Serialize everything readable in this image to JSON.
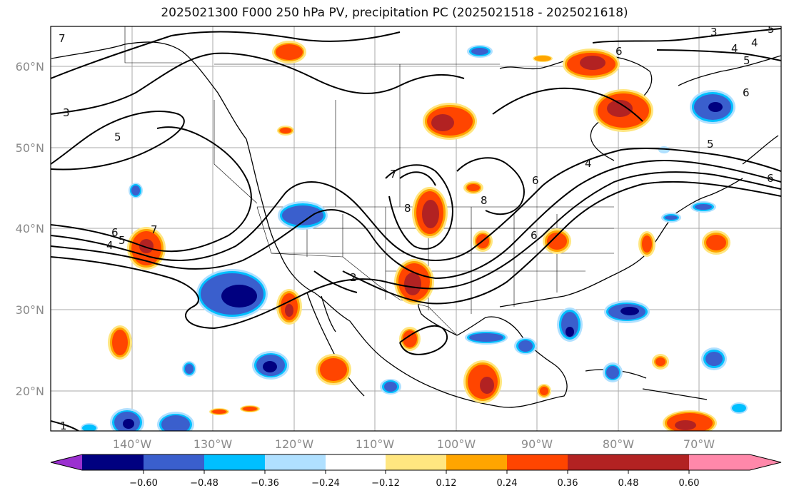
{
  "title": "2025021300 F000 250 hPa PV, precipitation PC (2025021518 - 2025021618)",
  "lon_labels": [
    "140°W",
    "130°W",
    "120°W",
    "110°W",
    "100°W",
    "90°W",
    "80°W",
    "70°W"
  ],
  "lat_labels": [
    "60°N",
    "50°N",
    "40°N",
    "30°N",
    "20°N"
  ],
  "colorbar": {
    "ticks": [
      "−0.60",
      "−0.48",
      "−0.36",
      "−0.24",
      "−0.12",
      "0.12",
      "0.24",
      "0.36",
      "0.48",
      "0.60"
    ],
    "colors": [
      "#9b30d0",
      "#000080",
      "#3a5fcd",
      "#00bfff",
      "#b0e0ff",
      "#ffffff",
      "#ffe680",
      "#ffa500",
      "#ff4500",
      "#b22222",
      "#ff88aa"
    ]
  },
  "contour_labels": [
    "7",
    "3",
    "5",
    "4",
    "5",
    "6",
    "6",
    "7",
    "5",
    "4",
    "2",
    "8",
    "8",
    "7",
    "6",
    "6",
    "4",
    "5",
    "6",
    "6",
    "3",
    "4",
    "5",
    "1"
  ]
}
